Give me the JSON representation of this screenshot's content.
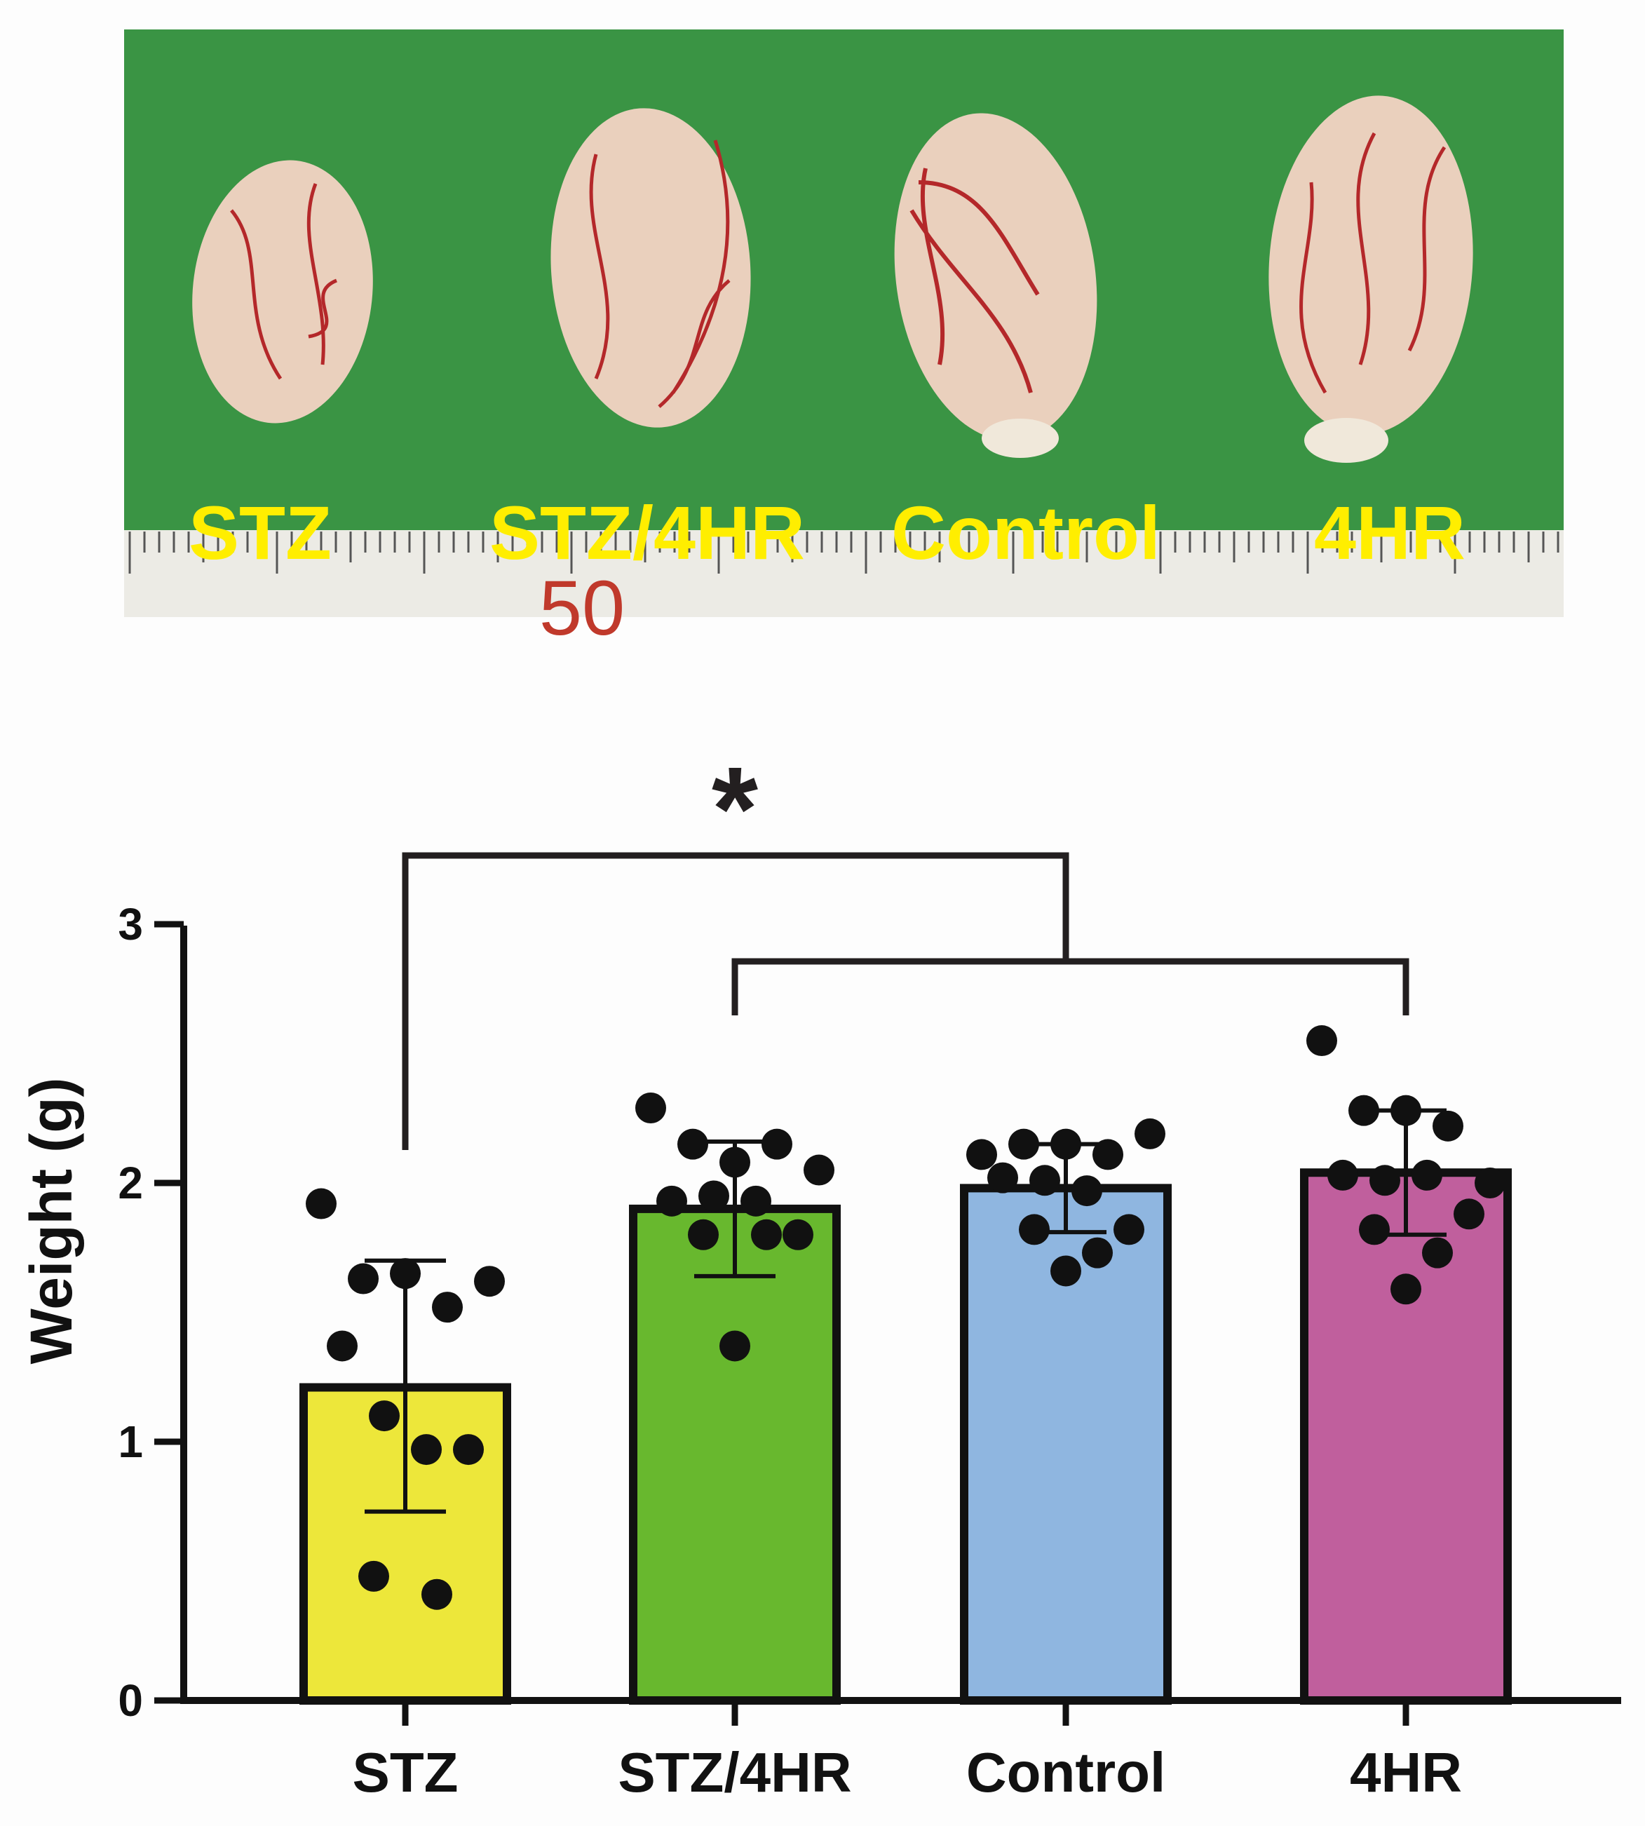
{
  "photo": {
    "labels": [
      "STZ",
      "STZ/4HR",
      "Control",
      "4HR"
    ],
    "label_color": "#ffee00",
    "background_color": "#3a9444",
    "ruler_number": "50"
  },
  "chart_data": {
    "type": "bar",
    "categories": [
      "STZ",
      "STZ/4HR",
      "Control",
      "4HR"
    ],
    "colors": [
      "#ede73a",
      "#68b82e",
      "#8fb6e0",
      "#c05f9d"
    ],
    "means": [
      1.21,
      1.9,
      1.98,
      2.04
    ],
    "sd_upper": [
      1.7,
      2.16,
      2.15,
      2.28
    ],
    "sd_lower": [
      0.73,
      1.64,
      1.81,
      1.8
    ],
    "points": [
      [
        1.92,
        1.63,
        1.65,
        1.52,
        1.62,
        1.37,
        1.1,
        0.97,
        0.97,
        0.48,
        0.41
      ],
      [
        2.29,
        2.15,
        2.08,
        2.15,
        2.05,
        1.93,
        1.95,
        1.93,
        1.8,
        1.8,
        1.8,
        1.37
      ],
      [
        2.11,
        2.15,
        2.15,
        2.11,
        2.19,
        2.02,
        2.01,
        1.97,
        1.82,
        1.82,
        1.73,
        1.66
      ],
      [
        2.55,
        2.28,
        2.28,
        2.22,
        2.0,
        2.03,
        2.01,
        2.03,
        1.88,
        1.82,
        1.73,
        1.59
      ]
    ],
    "ylabel": "Weight (g)",
    "ylim": [
      0,
      3
    ],
    "yticks": [
      0,
      1,
      2,
      3
    ],
    "significance": {
      "label": "*",
      "comparison": "STZ vs. STZ/4HR, Control, 4HR"
    }
  }
}
